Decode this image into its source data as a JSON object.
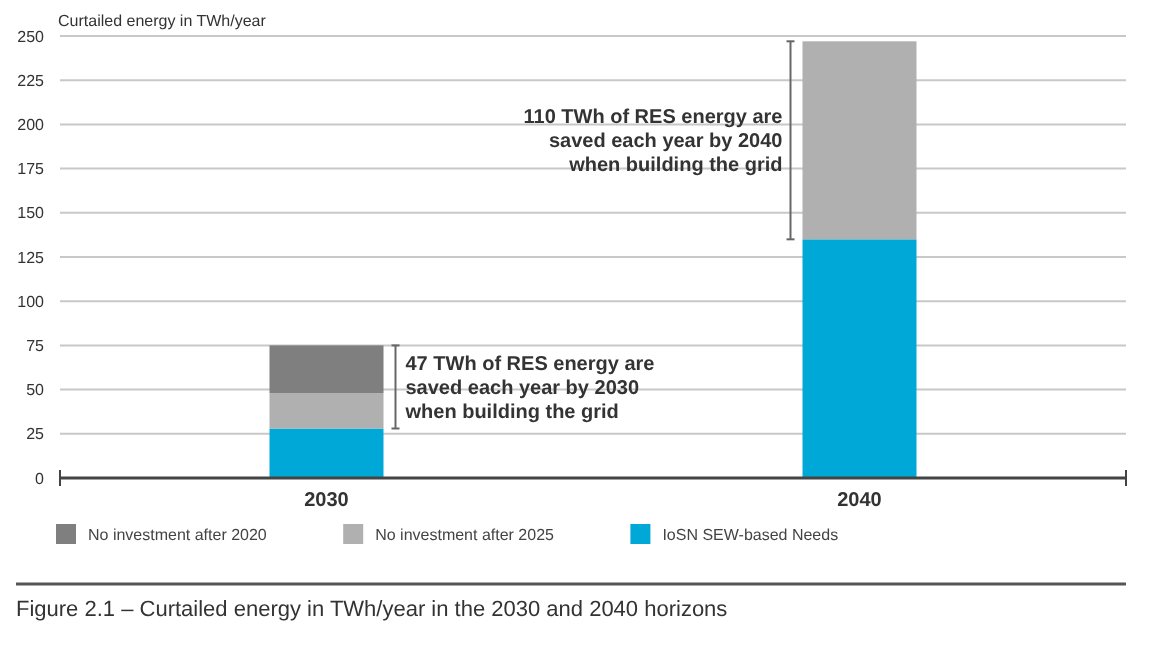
{
  "chart_data": {
    "type": "bar",
    "stacked": true,
    "ylabel": "Curtailed energy in TWh/year",
    "categories": [
      "2030",
      "2040"
    ],
    "series": [
      {
        "name": "IoSN SEW-based Needs",
        "color": "#00a8d8",
        "values": [
          28,
          135
        ]
      },
      {
        "name": "No investment after 2025",
        "color": "#b0b0b0",
        "values": [
          20,
          112
        ]
      },
      {
        "name": "No investment after 2020",
        "color": "#7f7f7f",
        "values": [
          27,
          0
        ]
      }
    ],
    "ylim": [
      0,
      250
    ],
    "yticks": [
      0,
      25,
      50,
      75,
      100,
      125,
      150,
      175,
      200,
      225,
      250
    ],
    "grid": "y",
    "legend": "bottom",
    "annotations": [
      "47 TWh of RES energy are\nsaved each year by 2030\nwhen building the grid",
      "110 TWh of RES energy are\nsaved each year by 2040\nwhen building the grid",
      "Figure 2.1 – Curtailed energy in TWh/year in the 2030 and 2040 horizons"
    ]
  }
}
